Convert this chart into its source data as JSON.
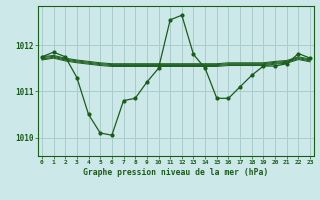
{
  "title": "Graphe pression niveau de la mer (hPa)",
  "bg_color": "#cce8e8",
  "grid_color": "#aacccc",
  "line_color": "#1a5c1a",
  "x_min": 0,
  "x_max": 23,
  "y_min": 1009.6,
  "y_max": 1012.85,
  "yticks": [
    1010,
    1011,
    1012
  ],
  "xticks": [
    0,
    1,
    2,
    3,
    4,
    5,
    6,
    7,
    8,
    9,
    10,
    11,
    12,
    13,
    14,
    15,
    16,
    17,
    18,
    19,
    20,
    21,
    22,
    23
  ],
  "main_line_y": [
    1011.75,
    1011.85,
    1011.75,
    1011.3,
    1010.5,
    1010.1,
    1010.05,
    1010.8,
    1010.85,
    1011.2,
    1011.5,
    1012.55,
    1012.65,
    1011.8,
    1011.5,
    1010.85,
    1010.85,
    1011.1,
    1011.35,
    1011.55,
    1011.55,
    1011.6,
    1011.82,
    1011.72
  ],
  "band_lines": [
    [
      1011.75,
      1011.78,
      1011.72,
      1011.68,
      1011.65,
      1011.62,
      1011.6,
      1011.6,
      1011.6,
      1011.6,
      1011.6,
      1011.6,
      1011.6,
      1011.6,
      1011.6,
      1011.6,
      1011.62,
      1011.62,
      1011.62,
      1011.62,
      1011.65,
      1011.67,
      1011.75,
      1011.7
    ],
    [
      1011.73,
      1011.76,
      1011.7,
      1011.66,
      1011.63,
      1011.6,
      1011.58,
      1011.58,
      1011.58,
      1011.58,
      1011.58,
      1011.58,
      1011.58,
      1011.58,
      1011.58,
      1011.58,
      1011.6,
      1011.6,
      1011.6,
      1011.6,
      1011.63,
      1011.65,
      1011.73,
      1011.68
    ],
    [
      1011.7,
      1011.74,
      1011.68,
      1011.64,
      1011.61,
      1011.58,
      1011.56,
      1011.56,
      1011.56,
      1011.56,
      1011.56,
      1011.56,
      1011.56,
      1011.56,
      1011.56,
      1011.56,
      1011.58,
      1011.58,
      1011.58,
      1011.58,
      1011.61,
      1011.63,
      1011.71,
      1011.66
    ],
    [
      1011.68,
      1011.72,
      1011.66,
      1011.62,
      1011.59,
      1011.56,
      1011.54,
      1011.54,
      1011.54,
      1011.54,
      1011.54,
      1011.54,
      1011.54,
      1011.54,
      1011.54,
      1011.54,
      1011.56,
      1011.56,
      1011.56,
      1011.56,
      1011.59,
      1011.61,
      1011.69,
      1011.64
    ]
  ]
}
